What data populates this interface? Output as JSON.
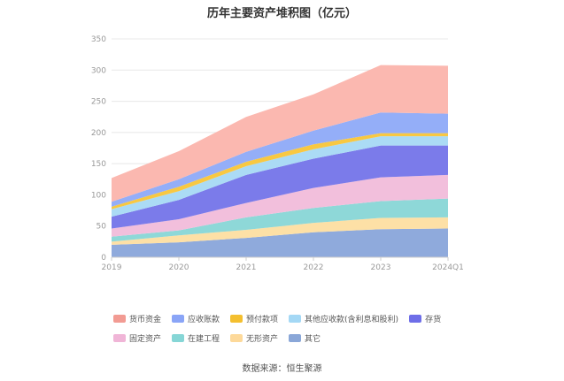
{
  "chart_data": {
    "type": "area",
    "stacked": true,
    "title": "历年主要资产堆积图（亿元）",
    "x": [
      "2019",
      "2020",
      "2021",
      "2022",
      "2023",
      "2024Q1"
    ],
    "yticks": [
      0,
      50,
      100,
      150,
      200,
      250,
      300,
      350
    ],
    "ylim": [
      0,
      350
    ],
    "grid": true,
    "legend_position": "bottom",
    "series": [
      {
        "name": "其它",
        "color": "#8faadc",
        "values": [
          20,
          24,
          31,
          40,
          45,
          46
        ]
      },
      {
        "name": "无形资产",
        "color": "#fde0a6",
        "values": [
          5,
          11,
          13,
          15,
          18,
          18
        ]
      },
      {
        "name": "在建工程",
        "color": "#8ed8d8",
        "values": [
          8,
          8,
          20,
          24,
          27,
          30
        ]
      },
      {
        "name": "固定资产",
        "color": "#f2bfdc",
        "values": [
          13,
          18,
          23,
          32,
          38,
          38
        ]
      },
      {
        "name": "存货",
        "color": "#7b7bea",
        "values": [
          19,
          31,
          45,
          47,
          51,
          47
        ]
      },
      {
        "name": "其他应收款(含利息和股利)",
        "color": "#abdbf5",
        "values": [
          12,
          14,
          14,
          15,
          15,
          15
        ]
      },
      {
        "name": "预付款项",
        "color": "#f8c842",
        "values": [
          4,
          7,
          7,
          8,
          5,
          5
        ]
      },
      {
        "name": "应收账款",
        "color": "#94aef8",
        "values": [
          8,
          12,
          16,
          22,
          33,
          31
        ]
      },
      {
        "name": "货币资金",
        "color": "#fbb8b0",
        "values": [
          38,
          45,
          56,
          58,
          76,
          77
        ]
      }
    ]
  },
  "legend": {
    "rows": [
      [
        {
          "label": "货币资金",
          "color": "#f29b93"
        },
        {
          "label": "应收账款",
          "color": "#8aa5f7"
        },
        {
          "label": "预付款项",
          "color": "#f4bf2f"
        },
        {
          "label": "其他应收款(含利息和股利)",
          "color": "#a4d8f5"
        },
        {
          "label": "存货",
          "color": "#6e6ee8"
        }
      ],
      [
        {
          "label": "固定资产",
          "color": "#f0b5d7"
        },
        {
          "label": "在建工程",
          "color": "#86d6d6"
        },
        {
          "label": "无形资产",
          "color": "#fdd99a"
        },
        {
          "label": "其它",
          "color": "#8aa7d8"
        }
      ]
    ]
  },
  "source": "数据来源：恒生聚源"
}
